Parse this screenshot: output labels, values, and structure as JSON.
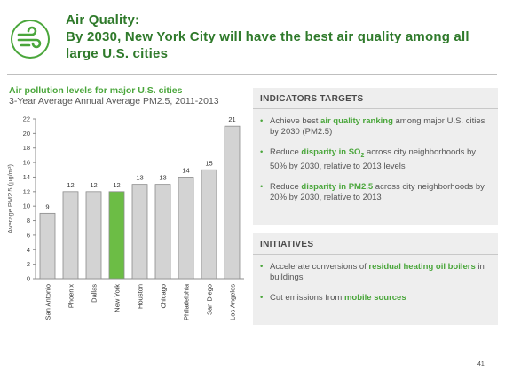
{
  "header": {
    "title_line1": "Air Quality:",
    "title_line2": "By 2030, New York City will have the best air quality among all",
    "title_line3": "large U.S. cities",
    "icon": "wind-icon"
  },
  "chart_data": {
    "type": "bar",
    "title": "Air pollution levels for major U.S. cities",
    "subtitle": "3-Year Average Annual Average PM2.5, 2011-2013",
    "ylabel": "Average PM2.5 (µg/m³)",
    "categories": [
      "San Antonio",
      "Phoenix",
      "Dallas",
      "New York",
      "Houston",
      "Chicago",
      "Philadelphia",
      "San Diego",
      "Los Angeles"
    ],
    "values": [
      9,
      12,
      12,
      12,
      13,
      13,
      14,
      15,
      21
    ],
    "highlight": "New York",
    "ylim": [
      0,
      22
    ],
    "yticks": [
      0,
      2,
      4,
      6,
      8,
      10,
      12,
      14,
      16,
      18,
      20,
      22
    ],
    "colors": {
      "default": "#d3d3d3",
      "highlight": "#6cbd45",
      "border": "#8c8c8c"
    }
  },
  "indicators": {
    "heading": "INDICATORS TARGETS",
    "b1_pre": "Achieve best ",
    "b1_hl": "air quality ranking",
    "b1_post": " among major U.S. cities by 2030 (PM2.5)",
    "b2_pre": "Reduce ",
    "b2_hl": "disparity in SO",
    "b2_sub": "2",
    "b2_post": " across city neighborhoods by 50% by 2030, relative to 2013 levels",
    "b3_pre": "Reduce ",
    "b3_hl": "disparity in PM2.5",
    "b3_post": " across city neighborhoods by 20% by 2030, relative to 2013"
  },
  "initiatives": {
    "heading": "INITIATIVES",
    "b1_pre": "Accelerate conversions of ",
    "b1_hl": "residual heating oil boilers",
    "b1_post": " in buildings",
    "b2_pre": "Cut emissions from ",
    "b2_hl": "mobile sources"
  },
  "page_number": "41"
}
